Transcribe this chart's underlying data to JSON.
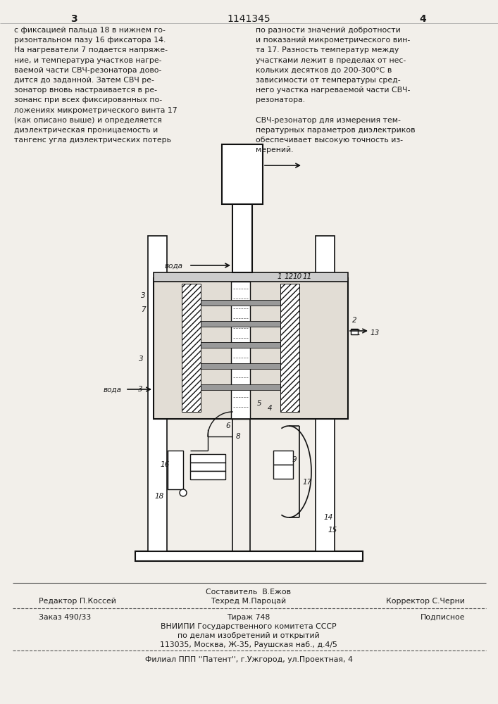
{
  "page_color": "#f2efea",
  "text_color": "#1a1a1a",
  "draw_color": "#111111",
  "header_num_left": "3",
  "header_center": "1141345",
  "header_num_right": "4",
  "col_left_text": [
    "с фиксацией пальца 18 в нижнем го-",
    "ризонтальном пазу 16 фиксатора 14.",
    "На нагреватели 7 подается напряже-",
    "ние, и температура участков нагре-",
    "ваемой части СВЧ-резонатора дово-",
    "дится до заданной. Затем СВЧ ре-",
    "зонатор вновь настраивается в ре-",
    "зонанс при всех фиксированных по-",
    "ложениях микрометрического винта 17",
    "(как описано выше) и определяется",
    "диэлектрическая проницаемость и",
    "тангенс угла диэлектрических потерь"
  ],
  "col_right_text": [
    "по разности значений добротности",
    "и показаний микрометрического вин-",
    "та 17. Разность температур между",
    "участками лежит в пределах от нес-",
    "кольких десятков до 200-300°С в",
    "зависимости от температуры сред-",
    "него участка нагреваемой части СВЧ-",
    "резонатора.",
    "",
    "СВЧ-резонатор для измерения тем-",
    "пературных параметров диэлектриков",
    "обеспечивает высокую точность из-",
    "мерений."
  ],
  "footer_line1_left": "Редактор П.Коссей",
  "footer_line1_center_top": "Составитель  В.Ежов",
  "footer_line1_center_bot": "Техред М.Пароцай",
  "footer_line1_right": "Корректор С.Черни",
  "footer_line2_left": "Заказ 490/33",
  "footer_line2_center": "Тираж 748",
  "footer_line2_right": "Подписное",
  "footer_line3": "ВНИИПИ Государственного комитета СССР",
  "footer_line4": "по делам изобретений и открытий",
  "footer_line5": "113035, Москва, Ж-35, Раушская наб., д.4/5",
  "footer_line6": "Филиал ППП ''Патент'', г.Ужгород, ул.Проектная, 4"
}
